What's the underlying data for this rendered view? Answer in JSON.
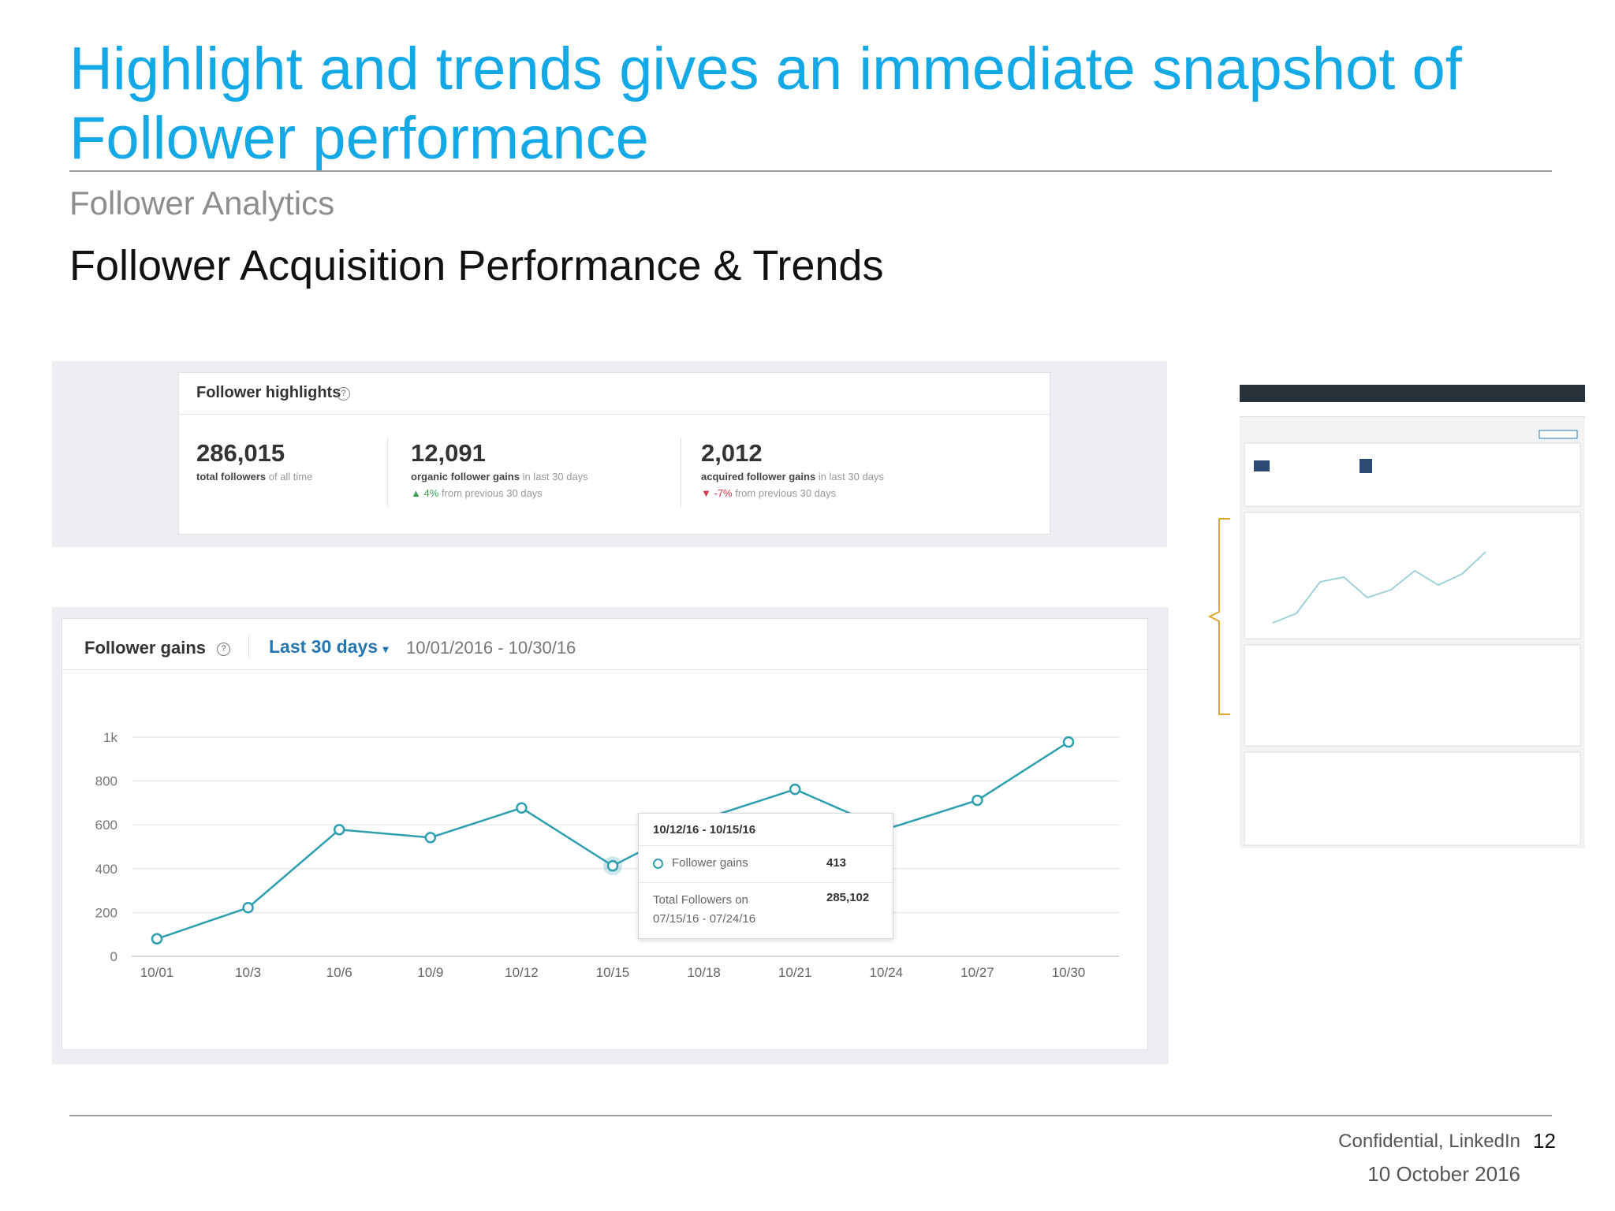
{
  "slide": {
    "title": "Highlight and trends gives an immediate snapshot of Follower performance",
    "section": "Follower Analytics",
    "subtitle": "Follower Acquisition Performance & Trends"
  },
  "highlights": {
    "title": "Follower highlights",
    "help_icon": "question-circle-icon",
    "metrics": [
      {
        "value": "286,015",
        "label_bold": "total followers",
        "label_rest": " of all time",
        "change": ""
      },
      {
        "value": "12,091",
        "label_bold": "organic follower gains",
        "label_rest": " in last 30 days",
        "change_symbol": "▲",
        "change_value": "4%",
        "change_text": " from previous 30 days"
      },
      {
        "value": "2,012",
        "label_bold": "acquired follower gains",
        "label_rest": " in last 30 days",
        "change_symbol": "▼",
        "change_value": "-7%",
        "change_text": " from previous 30 days"
      }
    ]
  },
  "gains": {
    "title": "Follower gains",
    "range_label": "Last 30 days",
    "range_caret": "▾",
    "date_range": "10/01/2016 - 10/30/16",
    "tooltip": {
      "header": "10/12/16 - 10/15/16",
      "row1_label": "Follower gains",
      "row1_value": "413",
      "row2_label": "Total Followers on 07/15/16 - 07/24/16",
      "row2_value": "285,102"
    }
  },
  "chart_data": {
    "type": "line",
    "title": "Follower gains",
    "categories": [
      "10/01",
      "10/3",
      "10/6",
      "10/9",
      "10/12",
      "10/15",
      "10/18",
      "10/21",
      "10/24",
      "10/27",
      "10/30"
    ],
    "series": [
      {
        "name": "Follower gains",
        "values": [
          80,
          222,
          578,
          542,
          677,
          413,
          627,
          762,
          580,
          712,
          978
        ]
      }
    ],
    "y_ticks": [
      "0",
      "200",
      "400",
      "600",
      "800",
      "1k"
    ],
    "y_tick_values": [
      0,
      200,
      400,
      600,
      800,
      1000
    ],
    "ylim": [
      0,
      1000
    ],
    "highlighted_index": 5,
    "line_color": "#2e9fb0",
    "grid": true
  },
  "footer": {
    "confidential": "Confidential, LinkedIn",
    "page": "12",
    "date": "10 October 2016"
  },
  "colors": {
    "title": "#13a9e6",
    "accent": "#2577b1",
    "line": "#2e9fb0",
    "bracket": "#e0a82e"
  }
}
